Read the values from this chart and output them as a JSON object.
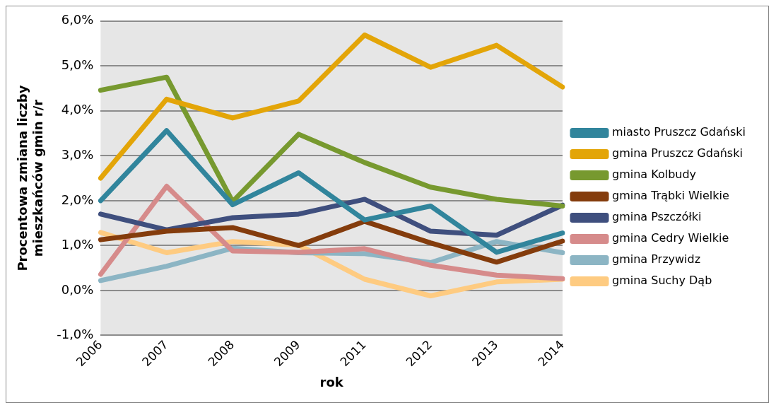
{
  "chart_data": {
    "type": "line",
    "xlabel": "rok",
    "ylabel": "Procentowa zmiana liczby mieszkańców gmin r/r",
    "categories": [
      "2006",
      "2007",
      "2008",
      "2009",
      "2011",
      "2012",
      "2013",
      "2014"
    ],
    "series": [
      {
        "name": "miasto Pruszcz Gdański",
        "color": "#31859c",
        "values": [
          2.0,
          3.56,
          1.91,
          2.62,
          1.57,
          1.88,
          0.85,
          1.28
        ]
      },
      {
        "name": "gmina Pruszcz Gdański",
        "color": "#e3a508",
        "values": [
          2.5,
          4.26,
          3.84,
          4.22,
          5.69,
          4.97,
          5.46,
          4.53
        ]
      },
      {
        "name": "gmina Kolbudy",
        "color": "#77992f",
        "values": [
          4.46,
          4.75,
          1.98,
          3.48,
          2.85,
          2.3,
          2.03,
          1.88
        ]
      },
      {
        "name": "gmina Trąbki Wielkie",
        "color": "#843c0c",
        "values": [
          1.13,
          1.32,
          1.4,
          1.0,
          1.54,
          1.06,
          0.63,
          1.1
        ]
      },
      {
        "name": "gmina Pszczółki",
        "color": "#3f4f7e",
        "values": [
          1.7,
          1.35,
          1.62,
          1.7,
          2.03,
          1.32,
          1.23,
          1.9
        ]
      },
      {
        "name": "gmina Cedry Wielkie",
        "color": "#d68b8b",
        "values": [
          0.36,
          2.32,
          0.88,
          0.85,
          0.93,
          0.56,
          0.34,
          0.26
        ]
      },
      {
        "name": "gmina Przywidz",
        "color": "#8cb5c4",
        "values": [
          0.22,
          0.54,
          0.94,
          0.84,
          0.82,
          0.62,
          1.09,
          0.84
        ]
      },
      {
        "name": "gmina Suchy Dąb",
        "color": "#fecb81",
        "values": [
          1.29,
          0.84,
          1.09,
          1.01,
          0.25,
          -0.12,
          0.19,
          0.25
        ]
      }
    ],
    "ylim": [
      -1,
      6
    ],
    "yticks": [
      {
        "value": -1,
        "label": "-1,0%"
      },
      {
        "value": 0,
        "label": "0,0%"
      },
      {
        "value": 1,
        "label": "1,0%"
      },
      {
        "value": 2,
        "label": "2,0%"
      },
      {
        "value": 3,
        "label": "3,0%"
      },
      {
        "value": 4,
        "label": "4,0%"
      },
      {
        "value": 5,
        "label": "5,0%"
      },
      {
        "value": 6,
        "label": "6,0%"
      }
    ],
    "grid": "y",
    "legend": "right",
    "marker": "none",
    "line_style": "solid"
  }
}
